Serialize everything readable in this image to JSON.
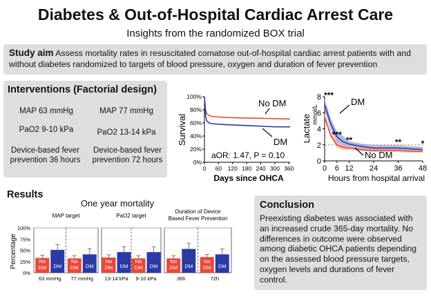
{
  "header": {
    "title": "Diabetes & Out-of-Hospital Cardiac Arrest Care",
    "subtitle": "Insights from the randomized BOX trial"
  },
  "aim": {
    "label": "Study aim",
    "text": "Assess mortality rates in resuscitated comatose out-of-hospital cardiac arrest patients with and without diabetes randomized to targets of blood pressure, oxygen and duration of fever prevention"
  },
  "interventions": {
    "title": "Interventions (Factorial design)",
    "items": [
      "MAP 63 mmHg",
      "MAP 77 mmHg",
      "PaO2 9-10 kPa",
      "PaO2 13-14 kPa",
      "Device-based fever prevention 36 hours",
      "Device-based fever prevention 72 hours"
    ]
  },
  "results": {
    "title": "Results",
    "chart_title": "One year mortality"
  },
  "conclusion": {
    "title": "Conclusion",
    "text": "Preexisting diabetes was associated with an increased crude 365-day mortality. No differences in outcome were observed among diabetic OHCA patients depending on the assessed blood pressure targets, oxygen levels and durations of fever control."
  },
  "colors": {
    "no_dm": "#e8483a",
    "dm": "#2b3aa4",
    "panel": "#dedede"
  },
  "chart_data": [
    {
      "type": "line",
      "xlabel": "Days since OHCA",
      "ylabel": "Survival",
      "xticks": [
        0,
        60,
        120,
        180,
        240,
        300,
        360
      ],
      "yticks": [
        "0%",
        "20%",
        "40%",
        "60%",
        "80%",
        "100%"
      ],
      "xlim": [
        0,
        365
      ],
      "ylim": [
        0,
        100
      ],
      "annotation": "aOR: 1.47, P = 0.10",
      "series": [
        {
          "name": "No DM",
          "x": [
            0,
            5,
            10,
            20,
            30,
            60,
            120,
            180,
            240,
            300,
            365
          ],
          "y": [
            100,
            80,
            74,
            71,
            70,
            69,
            68,
            67.5,
            67,
            66.5,
            66
          ]
        },
        {
          "name": "DM",
          "x": [
            0,
            5,
            10,
            20,
            30,
            60,
            120,
            180,
            240,
            300,
            365
          ],
          "y": [
            100,
            70,
            63,
            60,
            59,
            58,
            57,
            56,
            55,
            54,
            54
          ]
        }
      ]
    },
    {
      "type": "line",
      "xlabel": "Hours from hospital arrival",
      "ylabel": "Lactate",
      "yunit": "mmol/L",
      "xticks": [
        0,
        6,
        12,
        24,
        36,
        48
      ],
      "yticks": [
        0,
        2,
        4,
        6,
        8
      ],
      "xlim": [
        0,
        48
      ],
      "ylim": [
        0,
        8
      ],
      "significance": [
        {
          "x": 0,
          "label": "***"
        },
        {
          "x": 6,
          "label": "***"
        },
        {
          "x": 12,
          "label": "**"
        },
        {
          "x": 36,
          "label": "**"
        },
        {
          "x": 48,
          "label": "*"
        }
      ],
      "series": [
        {
          "name": "DM",
          "x": [
            0,
            3,
            6,
            9,
            12,
            18,
            24,
            30,
            36,
            42,
            48
          ],
          "y": [
            7.0,
            4.6,
            3.0,
            2.4,
            2.1,
            1.8,
            1.6,
            1.6,
            1.6,
            1.5,
            1.4
          ]
        },
        {
          "name": "No DM",
          "x": [
            0,
            3,
            6,
            9,
            12,
            18,
            24,
            30,
            36,
            42,
            48
          ],
          "y": [
            5.5,
            3.2,
            2.0,
            1.7,
            1.6,
            1.4,
            1.3,
            1.3,
            1.3,
            1.2,
            1.2
          ]
        }
      ]
    },
    {
      "type": "bar",
      "title": "One year mortality",
      "ylabel": "Percentage",
      "yticks": [
        "0%",
        "25%",
        "50%",
        "75%",
        "100%"
      ],
      "ylim": [
        0,
        100
      ],
      "panels": [
        {
          "title": "MAP target",
          "groups": [
            "63 mmHg",
            "77 mmHg"
          ],
          "bars": [
            {
              "group": "63 mmHg",
              "series": "No DM",
              "value": 33,
              "err": 6
            },
            {
              "group": "63 mmHg",
              "series": "DM",
              "value": 51,
              "err": 12
            },
            {
              "group": "77 mmHg",
              "series": "No DM",
              "value": 32,
              "err": 6
            },
            {
              "group": "77 mmHg",
              "series": "DM",
              "value": 41,
              "err": 13
            }
          ]
        },
        {
          "title": "PaO2 target",
          "groups": [
            "13-14 kPa",
            "9-10 kPa"
          ],
          "bars": [
            {
              "group": "13-14 kPa",
              "series": "No DM",
              "value": 34,
              "err": 6
            },
            {
              "group": "13-14 kPa",
              "series": "DM",
              "value": 46,
              "err": 12
            },
            {
              "group": "9-10 kPa",
              "series": "No DM",
              "value": 32,
              "err": 6
            },
            {
              "group": "9-10 kPa",
              "series": "DM",
              "value": 46,
              "err": 12
            }
          ]
        },
        {
          "title": "Duration of Device Based Fever Prevention",
          "groups": [
            "36h",
            "72h"
          ],
          "bars": [
            {
              "group": "36h",
              "series": "No DM",
              "value": 32,
              "err": 6
            },
            {
              "group": "36h",
              "series": "DM",
              "value": 53,
              "err": 13
            },
            {
              "group": "72h",
              "series": "No DM",
              "value": 35,
              "err": 6
            },
            {
              "group": "72h",
              "series": "DM",
              "value": 41,
              "err": 12
            }
          ]
        }
      ],
      "bar_labels": {
        "no_dm": [
          "No",
          "DM"
        ],
        "dm": "DM"
      }
    }
  ]
}
